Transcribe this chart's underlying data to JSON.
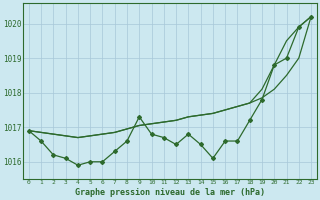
{
  "xlabel": "Graphe pression niveau de la mer (hPa)",
  "x": [
    0,
    1,
    2,
    3,
    4,
    5,
    6,
    7,
    8,
    9,
    10,
    11,
    12,
    13,
    14,
    15,
    16,
    17,
    18,
    19,
    20,
    21,
    22,
    23
  ],
  "line_zigzag": [
    1016.9,
    1016.6,
    1016.2,
    1016.1,
    1015.9,
    1016.0,
    1016.0,
    1016.3,
    1016.6,
    1017.3,
    1016.8,
    1016.7,
    1016.5,
    1016.8,
    1016.5,
    1016.1,
    1016.6,
    1016.6,
    1017.2,
    1017.8,
    1018.8,
    1019.0,
    1019.9,
    1020.2
  ],
  "line_trend1": [
    1016.9,
    1016.85,
    1016.8,
    1016.75,
    1016.7,
    1016.75,
    1016.8,
    1016.85,
    1016.95,
    1017.05,
    1017.1,
    1017.15,
    1017.2,
    1017.3,
    1017.35,
    1017.4,
    1017.5,
    1017.6,
    1017.7,
    1017.85,
    1018.1,
    1018.5,
    1019.0,
    1020.2
  ],
  "line_trend2": [
    1016.9,
    1016.85,
    1016.8,
    1016.75,
    1016.7,
    1016.75,
    1016.8,
    1016.85,
    1016.95,
    1017.05,
    1017.1,
    1017.15,
    1017.2,
    1017.3,
    1017.35,
    1017.4,
    1017.5,
    1017.6,
    1017.7,
    1018.1,
    1018.8,
    1019.5,
    1019.9,
    1020.2
  ],
  "bg_color": "#cce8f0",
  "line_color": "#2d6a2d",
  "marker_color": "#2d6a2d",
  "grid_color": "#a8c8d8",
  "ylim": [
    1015.5,
    1020.6
  ],
  "yticks": [
    1016,
    1017,
    1018,
    1019,
    1020
  ],
  "xticks": [
    0,
    1,
    2,
    3,
    4,
    5,
    6,
    7,
    8,
    9,
    10,
    11,
    12,
    13,
    14,
    15,
    16,
    17,
    18,
    19,
    20,
    21,
    22,
    23
  ]
}
